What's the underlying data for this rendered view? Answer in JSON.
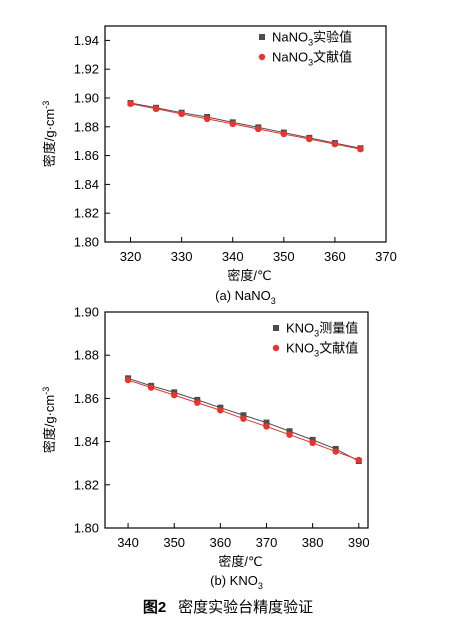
{
  "figure_caption": {
    "number": "图2",
    "text": "密度实验台精度验证"
  },
  "colors": {
    "series_measured": "#4d4d4d",
    "series_literature": "#e8342e",
    "axis": "#000000"
  },
  "chart_data": [
    {
      "type": "line",
      "caption": {
        "main": "(a) NaNO",
        "sub": "3"
      },
      "xlabel": "密度/℃",
      "ylabel": {
        "main": "密度/g·cm",
        "sup": "-3"
      },
      "xlim": [
        315,
        370
      ],
      "ylim": [
        1.8,
        1.95
      ],
      "xticks": [
        320,
        330,
        340,
        350,
        360,
        370
      ],
      "yticks": [
        1.8,
        1.82,
        1.84,
        1.86,
        1.88,
        1.9,
        1.92,
        1.94
      ],
      "ytick_labels": [
        "1.80",
        "1.82",
        "1.84",
        "1.86",
        "1.88",
        "1.90",
        "1.92",
        "1.94"
      ],
      "legend_position": "top-right",
      "x": [
        320,
        325,
        330,
        335,
        340,
        345,
        350,
        355,
        360,
        365
      ],
      "series": [
        {
          "name_main": "NaNO",
          "name_sub": "3",
          "name_tail": "实验值",
          "marker": "square",
          "color": "#4d4d4d",
          "values": [
            1.8965,
            1.8932,
            1.8898,
            1.8868,
            1.8831,
            1.8796,
            1.876,
            1.8723,
            1.8687,
            1.8651
          ]
        },
        {
          "name_main": "NaNO",
          "name_sub": "3",
          "name_tail": "文献值",
          "marker": "circle",
          "color": "#e8342e",
          "values": [
            1.896,
            1.8925,
            1.889,
            1.8855,
            1.882,
            1.8785,
            1.875,
            1.8715,
            1.868,
            1.8645
          ]
        }
      ]
    },
    {
      "type": "line",
      "caption": {
        "main": "(b) KNO",
        "sub": "3"
      },
      "xlabel": "密度/℃",
      "ylabel": {
        "main": "密度/g·cm",
        "sup": "-3"
      },
      "xlim": [
        335,
        392
      ],
      "ylim": [
        1.8,
        1.9
      ],
      "xticks": [
        340,
        350,
        360,
        370,
        380,
        390
      ],
      "yticks": [
        1.8,
        1.82,
        1.84,
        1.86,
        1.88,
        1.9
      ],
      "ytick_labels": [
        "1.80",
        "1.82",
        "1.84",
        "1.86",
        "1.88",
        "1.90"
      ],
      "legend_position": "top-right",
      "x": [
        340,
        345,
        350,
        355,
        360,
        365,
        370,
        375,
        380,
        385,
        390
      ],
      "series": [
        {
          "name_main": "KNO",
          "name_sub": "3",
          "name_tail": "测量值",
          "marker": "square",
          "color": "#4d4d4d",
          "values": [
            1.8693,
            1.8658,
            1.8628,
            1.8593,
            1.8557,
            1.8522,
            1.8488,
            1.8448,
            1.8408,
            1.8366,
            1.831
          ]
        },
        {
          "name_main": "KNO",
          "name_sub": "3",
          "name_tail": "文献值",
          "marker": "circle",
          "color": "#e8342e",
          "values": [
            1.8685,
            1.865,
            1.8615,
            1.858,
            1.8545,
            1.8506,
            1.847,
            1.8432,
            1.8394,
            1.8354,
            1.8315
          ]
        }
      ]
    }
  ]
}
